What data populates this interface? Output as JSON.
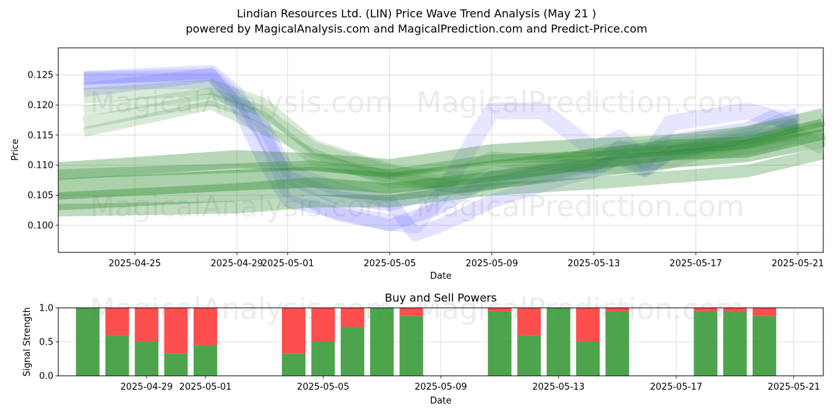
{
  "title": "Lindian Resources Ltd. (LIN) Price Wave Trend Analysis (May 21 )",
  "subtitle": "powered by MagicalAnalysis.com and MagicalPrediction.com and Predict-Price.com",
  "watermarks": [
    "MagicalAnalysis.com",
    "MagicalPrediction.com"
  ],
  "colors": {
    "buy": "#3a9a3a",
    "sell": "#ff4444",
    "wave_blue": "#6666ff",
    "wave_green": "#2e8b2e"
  },
  "chart_data": [
    {
      "type": "line",
      "title": "",
      "xlabel": "Date",
      "ylabel": "Price",
      "x_ticks": [
        "2025-04-25",
        "2025-04-29",
        "2025-05-01",
        "2025-05-05",
        "2025-05-09",
        "2025-05-13",
        "2025-05-17",
        "2025-05-21"
      ],
      "y_ticks": [
        "0.100",
        "0.105",
        "0.110",
        "0.115",
        "0.120",
        "0.125"
      ],
      "ylim": [
        0.0955,
        0.1295
      ],
      "xlim": [
        "2025-04-22",
        "2025-05-22"
      ],
      "grid": true,
      "series": [
        {
          "x": [
            "2025-04-23",
            "2025-04-28",
            "2025-04-29",
            "2025-04-30",
            "2025-05-01",
            "2025-05-03",
            "2025-05-05",
            "2025-05-07",
            "2025-05-09",
            "2025-05-12",
            "2025-05-13",
            "2025-05-14",
            "2025-05-15",
            "2025-05-16",
            "2025-05-19",
            "2025-05-20",
            "2025-05-21"
          ],
          "values": [
            0.1245,
            0.1255,
            0.122,
            0.115,
            0.108,
            0.1045,
            0.1035,
            0.106,
            0.107,
            0.109,
            0.11,
            0.113,
            0.112,
            0.114,
            0.116,
            0.118,
            0.116
          ]
        },
        {
          "x": [
            "2025-04-23",
            "2025-04-28",
            "2025-04-29",
            "2025-04-30",
            "2025-05-01",
            "2025-05-03",
            "2025-05-05",
            "2025-05-07",
            "2025-05-09",
            "2025-05-12",
            "2025-05-13",
            "2025-05-14",
            "2025-05-15",
            "2025-05-16",
            "2025-05-19",
            "2025-05-20",
            "2025-05-21"
          ],
          "values": [
            0.1245,
            0.125,
            0.12,
            0.111,
            0.104,
            0.102,
            0.1,
            0.103,
            0.108,
            0.11,
            0.1095,
            0.111,
            0.109,
            0.112,
            0.114,
            0.115,
            0.117
          ]
        },
        {
          "x": [
            "2025-04-23",
            "2025-04-28",
            "2025-04-30",
            "2025-05-01",
            "2025-05-03",
            "2025-05-05",
            "2025-05-06",
            "2025-05-07",
            "2025-05-09",
            "2025-05-11",
            "2025-05-13",
            "2025-05-14",
            "2025-05-15",
            "2025-05-16",
            "2025-05-19",
            "2025-05-21"
          ],
          "values": [
            0.124,
            0.124,
            0.116,
            0.106,
            0.102,
            0.1005,
            0.1,
            0.105,
            0.119,
            0.119,
            0.1125,
            0.1145,
            0.1105,
            0.117,
            0.119,
            0.117
          ]
        },
        {
          "x": [
            "2025-04-23",
            "2025-04-28",
            "2025-04-30",
            "2025-05-01",
            "2025-05-03",
            "2025-05-05",
            "2025-05-06",
            "2025-05-07",
            "2025-05-09",
            "2025-05-12",
            "2025-05-13",
            "2025-05-14",
            "2025-05-15",
            "2025-05-16",
            "2025-05-19",
            "2025-05-21"
          ],
          "values": [
            0.1225,
            0.125,
            0.117,
            0.109,
            0.106,
            0.104,
            0.0985,
            0.1,
            0.104,
            0.108,
            0.109,
            0.1115,
            0.1095,
            0.112,
            0.115,
            0.1185
          ]
        },
        {
          "x": [
            "2025-04-23",
            "2025-04-28",
            "2025-04-30",
            "2025-05-02",
            "2025-05-05",
            "2025-05-07",
            "2025-05-09",
            "2025-05-13",
            "2025-05-15",
            "2025-05-17",
            "2025-05-19",
            "2025-05-21",
            "2025-05-22"
          ],
          "values": [
            0.1215,
            0.123,
            0.12,
            0.113,
            0.109,
            0.107,
            0.111,
            0.11,
            0.1095,
            0.112,
            0.113,
            0.115,
            0.113
          ]
        },
        {
          "x": [
            "2025-04-23",
            "2025-04-28",
            "2025-04-30",
            "2025-05-02",
            "2025-05-05",
            "2025-05-08",
            "2025-05-11",
            "2025-05-14",
            "2025-05-17",
            "2025-05-21"
          ],
          "values": [
            0.117,
            0.121,
            0.118,
            0.111,
            0.108,
            0.106,
            0.109,
            0.112,
            0.113,
            0.116
          ]
        },
        {
          "x": [
            "2025-04-23",
            "2025-04-28",
            "2025-04-30",
            "2025-05-02",
            "2025-05-05",
            "2025-05-08",
            "2025-05-11",
            "2025-05-14",
            "2025-05-17",
            "2025-05-21"
          ],
          "values": [
            0.119,
            0.122,
            0.119,
            0.113,
            0.109,
            0.108,
            0.11,
            0.113,
            0.114,
            0.117
          ]
        },
        {
          "x": [
            "2025-04-23",
            "2025-04-28",
            "2025-04-30",
            "2025-05-02",
            "2025-05-05",
            "2025-05-08",
            "2025-05-11",
            "2025-05-14",
            "2025-05-17",
            "2025-05-21"
          ],
          "values": [
            0.1155,
            0.12,
            0.116,
            0.112,
            0.107,
            0.107,
            0.108,
            0.111,
            0.112,
            0.115
          ]
        },
        {
          "x": [
            "2025-04-22",
            "2025-04-29",
            "2025-05-02",
            "2025-05-05",
            "2025-05-09",
            "2025-05-13",
            "2025-05-16",
            "2025-05-19",
            "2025-05-22"
          ],
          "values": [
            0.109,
            0.111,
            0.1105,
            0.1095,
            0.112,
            0.113,
            0.1135,
            0.115,
            0.118
          ]
        },
        {
          "x": [
            "2025-04-22",
            "2025-04-29",
            "2025-05-02",
            "2025-05-05",
            "2025-05-09",
            "2025-05-13",
            "2025-05-16",
            "2025-05-19",
            "2025-05-22"
          ],
          "values": [
            0.106,
            0.1075,
            0.108,
            0.107,
            0.109,
            0.111,
            0.1125,
            0.113,
            0.116
          ]
        },
        {
          "x": [
            "2025-04-22",
            "2025-04-29",
            "2025-05-02",
            "2025-05-05",
            "2025-05-09",
            "2025-05-13",
            "2025-05-16",
            "2025-05-19",
            "2025-05-22"
          ],
          "values": [
            0.104,
            0.1055,
            0.1065,
            0.1055,
            0.1075,
            0.1095,
            0.111,
            0.112,
            0.1145
          ]
        },
        {
          "x": [
            "2025-04-22",
            "2025-04-29",
            "2025-05-02",
            "2025-05-05",
            "2025-05-09",
            "2025-05-13",
            "2025-05-16",
            "2025-05-19",
            "2025-05-22"
          ],
          "values": [
            0.1025,
            0.103,
            0.104,
            0.104,
            0.106,
            0.107,
            0.108,
            0.109,
            0.112
          ]
        },
        {
          "x": [
            "2025-04-22",
            "2025-04-29",
            "2025-05-02",
            "2025-05-05",
            "2025-05-09",
            "2025-05-13",
            "2025-05-16",
            "2025-05-19",
            "2025-05-22"
          ],
          "values": [
            0.1085,
            0.1095,
            0.11,
            0.1085,
            0.111,
            0.1115,
            0.1125,
            0.1135,
            0.1165
          ]
        }
      ]
    },
    {
      "type": "bar",
      "title": "Buy and Sell Powers",
      "xlabel": "Date",
      "ylabel": "Signal Strength",
      "ylim": [
        0,
        1
      ],
      "y_ticks": [
        "0.0",
        "0.5",
        "1.0"
      ],
      "x_ticks": [
        "2025-04-29",
        "2025-05-01",
        "2025-05-05",
        "2025-05-09",
        "2025-05-13",
        "2025-05-17",
        "2025-05-21"
      ],
      "xlim": [
        "2025-04-26",
        "2025-05-22"
      ],
      "grid": true,
      "categories": [
        "2025-04-27",
        "2025-04-28",
        "2025-04-29",
        "2025-04-30",
        "2025-05-01",
        "2025-05-04",
        "2025-05-05",
        "2025-05-06",
        "2025-05-07",
        "2025-05-08",
        "2025-05-11",
        "2025-05-12",
        "2025-05-13",
        "2025-05-14",
        "2025-05-15",
        "2025-05-18",
        "2025-05-19",
        "2025-05-20"
      ],
      "series": [
        {
          "name": "Buy",
          "values": [
            1.0,
            0.6,
            0.5,
            0.33,
            0.45,
            0.33,
            0.5,
            0.72,
            1.0,
            0.88,
            0.95,
            0.6,
            1.0,
            0.5,
            0.95,
            0.95,
            0.95,
            0.88
          ]
        },
        {
          "name": "Sell",
          "values": [
            0.0,
            0.4,
            0.5,
            0.67,
            0.55,
            0.67,
            0.5,
            0.28,
            0.0,
            0.12,
            0.05,
            0.4,
            0.0,
            0.5,
            0.05,
            0.05,
            0.05,
            0.12
          ]
        }
      ]
    }
  ]
}
